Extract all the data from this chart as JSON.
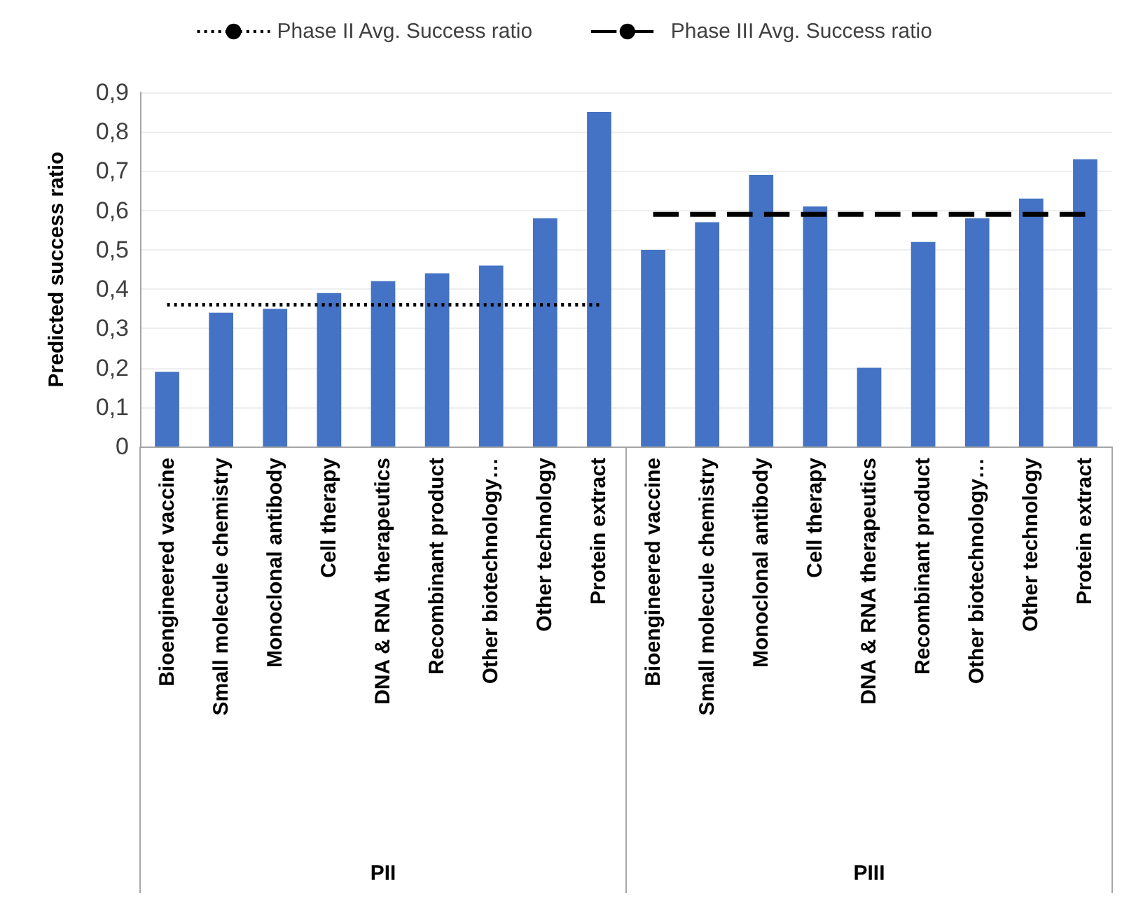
{
  "chart_data": {
    "type": "bar",
    "ylabel": "Predicted success ratio",
    "categories": [
      "Bioengineered vaccine",
      "Small molecule chemistry",
      "Monoclonal antibody",
      "Cell therapy",
      "DNA & RNA therapeutics",
      "Recombinant product",
      "Other biotechnology…",
      "Other technology",
      "Protein extract",
      "Bioengineered vaccine",
      "Small molecule chemistry",
      "Monoclonal antibody",
      "Cell therapy",
      "DNA & RNA therapeutics",
      "Recombinant product",
      "Other biotechnology…",
      "Other technology",
      "Protein extract"
    ],
    "series": [
      {
        "color": "#4472c4",
        "values": [
          0.19,
          0.34,
          0.35,
          0.39,
          0.42,
          0.44,
          0.46,
          0.58,
          0.85,
          0.5,
          0.57,
          0.69,
          0.61,
          0.2,
          0.52,
          0.58,
          0.63,
          0.73
        ]
      },
      {
        "type": "line",
        "name": "Phase II Avg. Success ratio",
        "color": "#000000",
        "line_style": "dotted",
        "values": [
          0.36,
          0.36,
          0.36,
          0.36,
          0.36,
          0.36,
          0.36,
          0.36,
          0.36,
          null,
          null,
          null,
          null,
          null,
          null,
          null,
          null,
          null
        ]
      },
      {
        "type": "line",
        "name": "Phase III Avg. Success ratio",
        "color": "#000000",
        "line_style": "dashed",
        "values": [
          null,
          null,
          null,
          null,
          null,
          null,
          null,
          null,
          null,
          0.59,
          0.59,
          0.59,
          0.59,
          0.59,
          0.59,
          0.59,
          0.59,
          0.59
        ]
      }
    ],
    "annotations": [
      "PII",
      "PIII"
    ],
    "ylim": [
      0,
      0.9
    ],
    "yticks": [
      {
        "value": 0,
        "label": "0"
      },
      {
        "value": 0.1,
        "label": "0,1"
      },
      {
        "value": 0.2,
        "label": "0,2"
      },
      {
        "value": 0.3,
        "label": "0,3"
      },
      {
        "value": 0.4,
        "label": "0,4"
      },
      {
        "value": 0.5,
        "label": "0,5"
      },
      {
        "value": 0.6,
        "label": "0,6"
      },
      {
        "value": 0.7,
        "label": "0,7"
      },
      {
        "value": 0.8,
        "label": "0,8"
      },
      {
        "value": 0.9,
        "label": "0,9"
      }
    ],
    "grid": "y",
    "legend": "top",
    "marker": "none"
  }
}
